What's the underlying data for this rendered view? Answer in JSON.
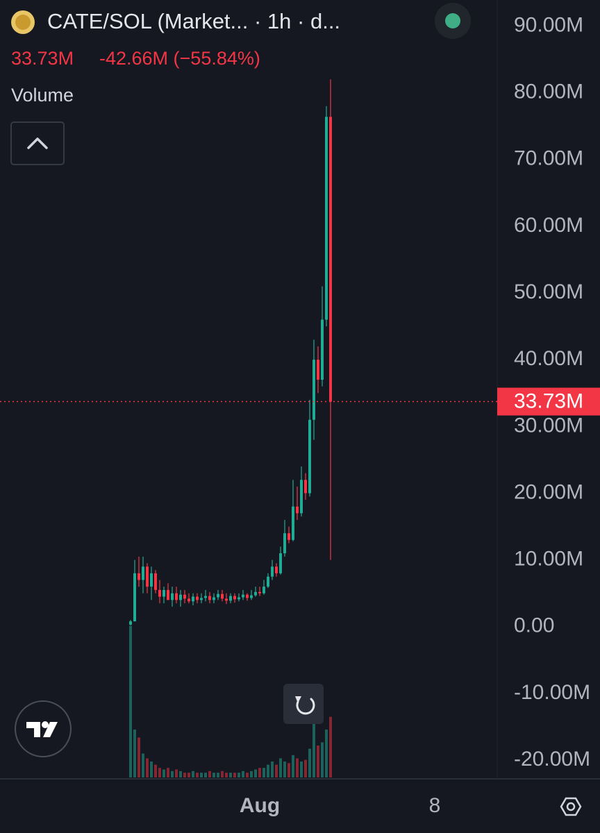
{
  "chart_data": {
    "type": "candlestick",
    "title": "CATE/SOL (Market... · 1h · d...",
    "price_label": "33.73M",
    "change_label": "-42.66M (−55.84%)",
    "last_price": 33.73,
    "volume_name": "Volume",
    "up_color": "#22ab94",
    "down_color": "#f23645",
    "categories": [
      null,
      null,
      null,
      null,
      null,
      null,
      null,
      null,
      null,
      null,
      null,
      null,
      null,
      null,
      null,
      null,
      null,
      null,
      null,
      null,
      null,
      null,
      null,
      null,
      null,
      null,
      null,
      null,
      null,
      null,
      null,
      "Aug",
      null,
      null,
      null,
      null,
      null,
      null,
      null,
      null,
      null,
      null,
      null,
      null,
      null,
      null,
      null,
      null,
      null,
      null,
      null,
      null,
      null,
      null,
      null,
      null,
      null,
      null,
      null,
      null,
      null,
      null,
      null,
      null,
      null,
      null,
      null,
      null,
      null,
      null,
      null,
      null,
      null,
      "8",
      null,
      null,
      null,
      null,
      null,
      null,
      null,
      null,
      null,
      null,
      null,
      null,
      null,
      null
    ],
    "open": [
      0.3,
      0.8,
      8,
      7,
      9,
      6,
      8,
      5.5,
      4.5,
      5.5,
      4,
      5,
      4,
      4.8,
      4.2,
      3.8,
      4.5,
      4,
      4.3,
      4.6,
      4,
      4.4,
      4.9,
      4.2,
      3.9,
      4.6,
      4.1,
      4.4,
      4.8,
      4.3,
      4.7,
      5.2,
      5,
      6,
      7.5,
      9,
      8,
      11,
      14,
      13,
      18,
      17,
      22,
      20,
      31,
      40,
      37,
      46,
      76.39,
      null,
      null,
      null,
      null,
      null,
      null,
      null,
      null,
      null,
      null,
      null,
      null,
      null,
      null,
      null,
      null,
      null,
      null,
      null,
      null,
      null,
      null,
      null,
      null,
      null,
      null,
      null,
      null,
      null,
      null,
      null,
      null,
      null,
      null,
      null,
      null,
      null,
      null,
      null
    ],
    "high": [
      1,
      10,
      10.5,
      10.5,
      9.5,
      9,
      8.5,
      7,
      6,
      6.5,
      6,
      6,
      5.5,
      5.5,
      5,
      5,
      5,
      5,
      5.5,
      5.2,
      5,
      5.5,
      5.5,
      5,
      5,
      5,
      5,
      5.5,
      5,
      5.5,
      6,
      6,
      7,
      8,
      10,
      9.5,
      12,
      16,
      15,
      22,
      21,
      24,
      23,
      34,
      43,
      42,
      51,
      78,
      82,
      null,
      null,
      null,
      null,
      null,
      null,
      null,
      null,
      null,
      null,
      null,
      null,
      null,
      null,
      null,
      null,
      null,
      null,
      null,
      null,
      null,
      null,
      null,
      null,
      null,
      null,
      null,
      null,
      null,
      null,
      null,
      null,
      null,
      null,
      null,
      null,
      null,
      null,
      null
    ],
    "low": [
      0.2,
      0.8,
      6,
      5,
      5,
      4,
      5,
      3.5,
      3.5,
      4,
      3,
      3.5,
      3,
      3.5,
      3.5,
      3.2,
      3.5,
      3.5,
      3.8,
      3.5,
      3.5,
      4,
      3.8,
      3.4,
      3.5,
      3.6,
      3.8,
      4,
      3.9,
      4,
      4.5,
      4.6,
      4.8,
      5.8,
      7,
      7.5,
      7.8,
      10.5,
      12.5,
      12.8,
      16,
      16.5,
      19,
      19.5,
      28,
      35,
      36,
      45,
      10,
      null,
      null,
      null,
      null,
      null,
      null,
      null,
      null,
      null,
      null,
      null,
      null,
      null,
      null,
      null,
      null,
      null,
      null,
      null,
      null,
      null,
      null,
      null,
      null,
      null,
      null,
      null,
      null,
      null,
      null,
      null,
      null,
      null,
      null,
      null,
      null,
      null,
      null,
      null
    ],
    "close": [
      0.8,
      8,
      7,
      9,
      6,
      8,
      5.5,
      4.5,
      5.5,
      4,
      5,
      4,
      4.8,
      4.2,
      3.8,
      4.5,
      4,
      4.3,
      4.6,
      4,
      4.4,
      4.9,
      4.2,
      3.9,
      4.6,
      4.1,
      4.4,
      4.8,
      4.3,
      4.7,
      5.2,
      5,
      6,
      7.5,
      9,
      8,
      11,
      14,
      13,
      18,
      17,
      22,
      20,
      31,
      40,
      37,
      46,
      76.39,
      33.73,
      null,
      null,
      null,
      null,
      null,
      null,
      null,
      null,
      null,
      null,
      null,
      null,
      null,
      null,
      null,
      null,
      null,
      null,
      null,
      null,
      null,
      null,
      null,
      null,
      null,
      null,
      null,
      null,
      null,
      null,
      null,
      null,
      null,
      null,
      null,
      null,
      null,
      null,
      null
    ],
    "volume": [
      95,
      30,
      25,
      15,
      12,
      10,
      8,
      6,
      5,
      6,
      4,
      5,
      4,
      3,
      3,
      4,
      3,
      3,
      3,
      4,
      3,
      3,
      4,
      3,
      3,
      3,
      3,
      4,
      3,
      4,
      5,
      6,
      6,
      8,
      10,
      8,
      12,
      10,
      9,
      14,
      12,
      10,
      11,
      18,
      35,
      20,
      22,
      30,
      38,
      null,
      null,
      null,
      null,
      null,
      null,
      null,
      null,
      null,
      null,
      null,
      null,
      null,
      null,
      null,
      null,
      null,
      null,
      null,
      null,
      null,
      null,
      null,
      null,
      null,
      null,
      null,
      null,
      null,
      null,
      null,
      null,
      null,
      null,
      null,
      null,
      null,
      null,
      null
    ],
    "volume_ylim": [
      0,
      100
    ],
    "ylim": [
      -22.8,
      93.9
    ],
    "yticks": [
      {
        "value": -20,
        "label": "-20.00M"
      },
      {
        "value": -10,
        "label": "-10.00M"
      },
      {
        "value": 0,
        "label": "0.00"
      },
      {
        "value": 10,
        "label": "10.00M"
      },
      {
        "value": 20,
        "label": "20.00M"
      },
      {
        "value": 30,
        "label": "30.00M"
      },
      {
        "value": 40,
        "label": "40.00M"
      },
      {
        "value": 50,
        "label": "50.00M"
      },
      {
        "value": 60,
        "label": "60.00M"
      },
      {
        "value": 70,
        "label": "70.00M"
      },
      {
        "value": 80,
        "label": "80.00M"
      },
      {
        "value": 90,
        "label": "90.00M"
      }
    ],
    "grid": false
  }
}
